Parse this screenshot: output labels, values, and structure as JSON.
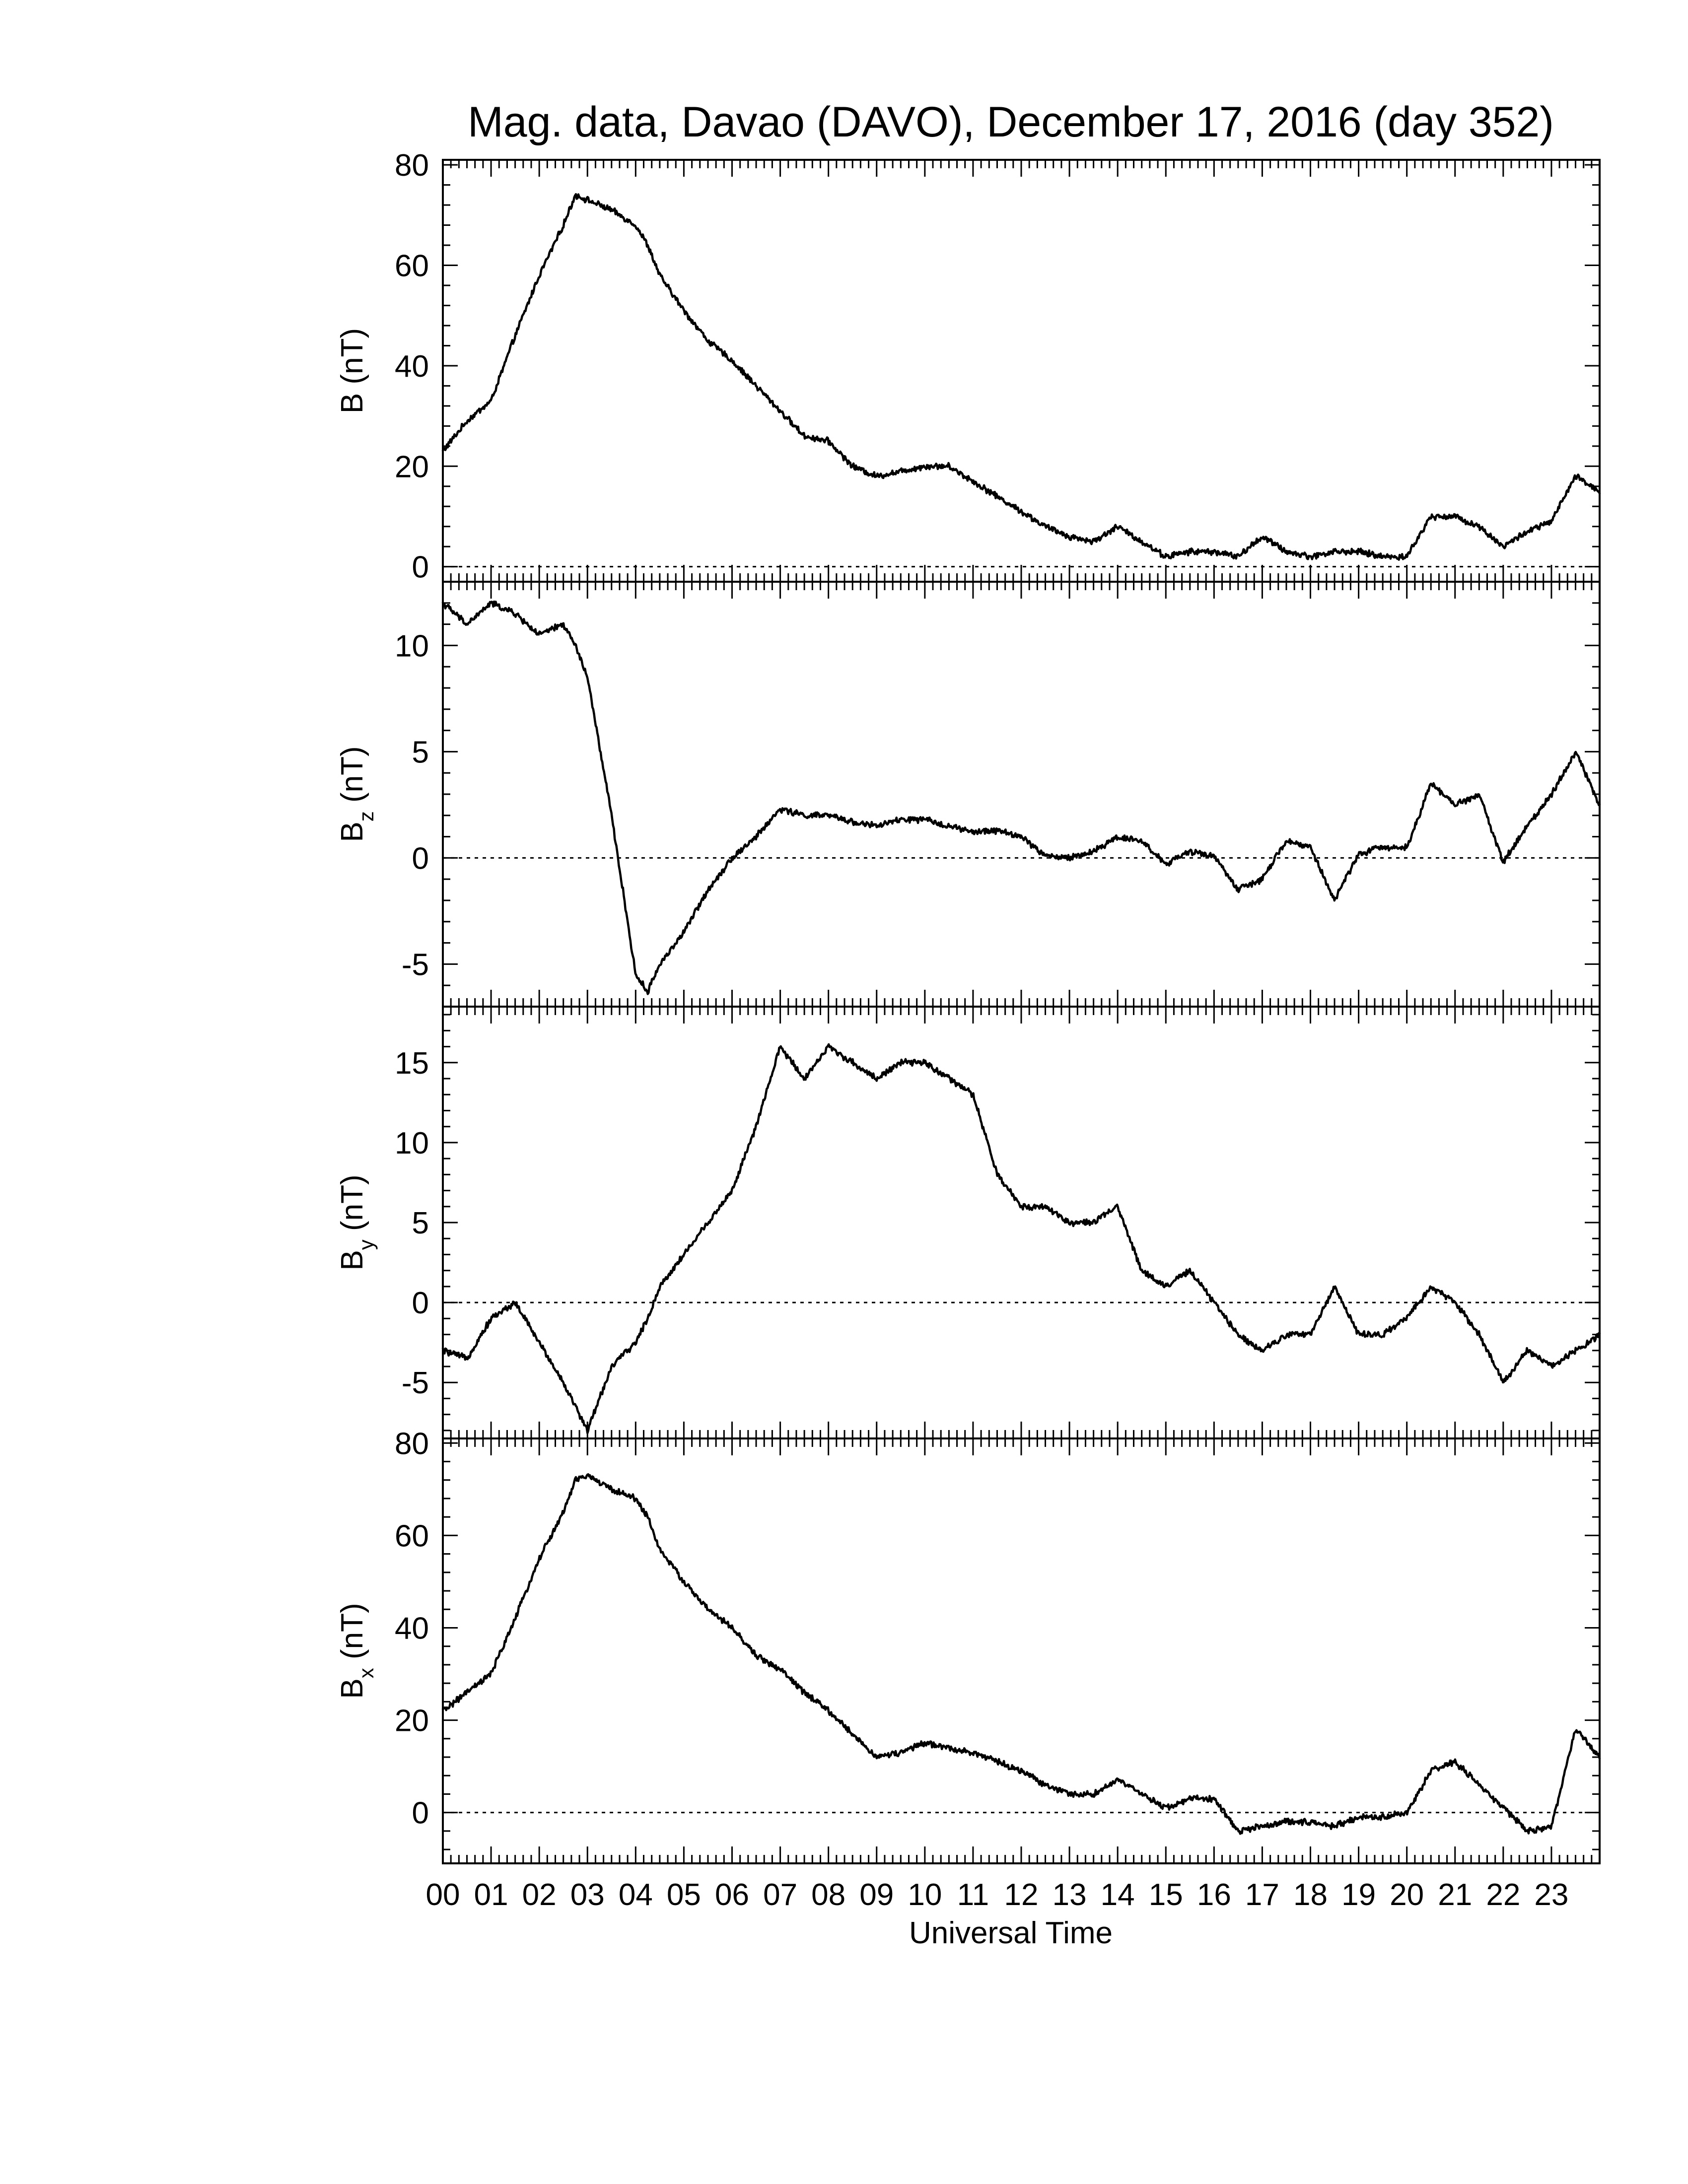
{
  "chart_data": {
    "type": "line",
    "title": "Mag. data, Davao (DAVO), December 17, 2016 (day 352)",
    "xlabel": "Universal Time",
    "x_tick_labels": [
      "00",
      "01",
      "02",
      "03",
      "04",
      "05",
      "06",
      "07",
      "08",
      "09",
      "10",
      "11",
      "12",
      "13",
      "14",
      "15",
      "16",
      "17",
      "18",
      "19",
      "20",
      "21",
      "22",
      "23"
    ],
    "x_unit": "hours UT",
    "xlim": [
      0,
      24
    ],
    "x": [
      0,
      0.5,
      1,
      1.5,
      2,
      2.5,
      2.75,
      3,
      3.5,
      4,
      4.25,
      4.5,
      5,
      5.5,
      6,
      6.5,
      7,
      7.5,
      8,
      8.5,
      9,
      9.5,
      10,
      10.5,
      11,
      11.5,
      12,
      12.5,
      13,
      13.5,
      14,
      14.5,
      15,
      15.5,
      16,
      16.5,
      17,
      17.5,
      18,
      18.5,
      19,
      19.5,
      20,
      20.5,
      21,
      21.5,
      22,
      22.5,
      23,
      23.5,
      24
    ],
    "panels": [
      {
        "key": "B",
        "ylabel": "B (nT)",
        "ylabel_sub": "",
        "ylim": [
          -3,
          81
        ],
        "yticks": [
          0,
          20,
          40,
          60,
          80
        ],
        "zero_line": true,
        "values": [
          23,
          29,
          33,
          46,
          58,
          68,
          74,
          73,
          71,
          68,
          64,
          58,
          51,
          45,
          41,
          36,
          31,
          26,
          25,
          20,
          18,
          19,
          20,
          20,
          17,
          14,
          11,
          8,
          6,
          5,
          8,
          5,
          2,
          3,
          3,
          2,
          6,
          3,
          2,
          3,
          3,
          2,
          2,
          10,
          10,
          8,
          4,
          7,
          9,
          18,
          15
        ]
      },
      {
        "key": "Bz",
        "ylabel": "B",
        "ylabel_sub": "z",
        "ylabel_unit": "(nT)",
        "ylim": [
          -7,
          13
        ],
        "yticks": [
          -5,
          0,
          5,
          10
        ],
        "ytick_labels": [
          "-5",
          "0",
          "5",
          "10"
        ],
        "zero_line": true,
        "values": [
          12,
          11,
          12,
          11.5,
          10.5,
          11,
          10,
          8.5,
          2,
          -5.5,
          -6.3,
          -5,
          -3.5,
          -1.5,
          0,
          1,
          2.3,
          2,
          2,
          1.7,
          1.5,
          1.8,
          1.8,
          1.5,
          1.2,
          1.3,
          1,
          0.1,
          0,
          0.3,
          1,
          0.8,
          -0.3,
          0.3,
          0.1,
          -1.5,
          -1,
          0.8,
          0.5,
          -2,
          0.2,
          0.5,
          0.5,
          3.5,
          2.5,
          3,
          -0.2,
          1.5,
          3,
          5,
          2.5
        ]
      },
      {
        "key": "By",
        "ylabel": "B",
        "ylabel_sub": "y",
        "ylabel_unit": "(nT)",
        "ylim": [
          -8.5,
          18.5
        ],
        "yticks": [
          -5,
          0,
          5,
          10,
          15
        ],
        "ytick_labels": [
          "-5",
          "0",
          "5",
          "10",
          "15"
        ],
        "zero_line": true,
        "values": [
          -3,
          -3.5,
          -1,
          0,
          -2.5,
          -5,
          -6.5,
          -8,
          -4,
          -2.5,
          -1,
          1,
          3,
          5,
          7,
          11,
          16,
          14,
          16,
          15,
          14,
          15,
          15,
          14,
          13,
          8,
          6,
          6,
          5,
          5,
          6,
          2,
          1,
          2,
          0,
          -2,
          -3,
          -2,
          -2,
          1,
          -2,
          -2,
          -1,
          1,
          0,
          -2,
          -5,
          -3,
          -4,
          -3,
          -2
        ]
      },
      {
        "key": "Bx",
        "ylabel": "B",
        "ylabel_sub": "x",
        "ylabel_unit": "(nT)",
        "ylim": [
          -11,
          81
        ],
        "yticks": [
          0,
          20,
          40,
          60,
          80
        ],
        "ytick_labels": [
          "0",
          "20",
          "40",
          "60",
          "80"
        ],
        "zero_line": true,
        "values": [
          22,
          26,
          30,
          42,
          55,
          65,
          72,
          73,
          70,
          68,
          64,
          57,
          50,
          44,
          40,
          34,
          31,
          26,
          22,
          17,
          12,
          13,
          15,
          14,
          13,
          11,
          9,
          6,
          4,
          4,
          7,
          4,
          1,
          3,
          3,
          -4,
          -3,
          -2,
          -2,
          -3,
          -1,
          -1,
          0,
          9,
          11,
          6,
          1,
          -4,
          -3,
          18,
          12
        ]
      }
    ],
    "grid": false,
    "legend": "none"
  }
}
